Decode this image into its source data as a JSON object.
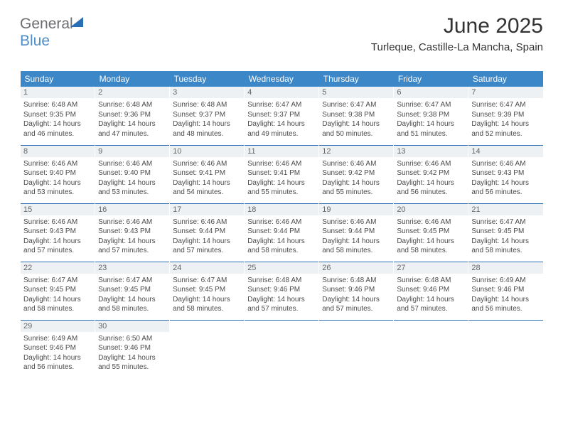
{
  "brand": {
    "part1": "General",
    "part2": "Blue"
  },
  "title": "June 2025",
  "location": "Turleque, Castille-La Mancha, Spain",
  "colors": {
    "header_bg": "#3b87c8",
    "header_text": "#ffffff",
    "daynum_bg": "#eef1f3",
    "weeksep": "#2a6fb5",
    "brand_blue": "#4f8ec8",
    "brand_gray": "#6d6e71"
  },
  "weekdays": [
    "Sunday",
    "Monday",
    "Tuesday",
    "Wednesday",
    "Thursday",
    "Friday",
    "Saturday"
  ],
  "weeks": [
    [
      {
        "day": "1",
        "sunrise": "Sunrise: 6:48 AM",
        "sunset": "Sunset: 9:35 PM",
        "dl1": "Daylight: 14 hours",
        "dl2": "and 46 minutes."
      },
      {
        "day": "2",
        "sunrise": "Sunrise: 6:48 AM",
        "sunset": "Sunset: 9:36 PM",
        "dl1": "Daylight: 14 hours",
        "dl2": "and 47 minutes."
      },
      {
        "day": "3",
        "sunrise": "Sunrise: 6:48 AM",
        "sunset": "Sunset: 9:37 PM",
        "dl1": "Daylight: 14 hours",
        "dl2": "and 48 minutes."
      },
      {
        "day": "4",
        "sunrise": "Sunrise: 6:47 AM",
        "sunset": "Sunset: 9:37 PM",
        "dl1": "Daylight: 14 hours",
        "dl2": "and 49 minutes."
      },
      {
        "day": "5",
        "sunrise": "Sunrise: 6:47 AM",
        "sunset": "Sunset: 9:38 PM",
        "dl1": "Daylight: 14 hours",
        "dl2": "and 50 minutes."
      },
      {
        "day": "6",
        "sunrise": "Sunrise: 6:47 AM",
        "sunset": "Sunset: 9:38 PM",
        "dl1": "Daylight: 14 hours",
        "dl2": "and 51 minutes."
      },
      {
        "day": "7",
        "sunrise": "Sunrise: 6:47 AM",
        "sunset": "Sunset: 9:39 PM",
        "dl1": "Daylight: 14 hours",
        "dl2": "and 52 minutes."
      }
    ],
    [
      {
        "day": "8",
        "sunrise": "Sunrise: 6:46 AM",
        "sunset": "Sunset: 9:40 PM",
        "dl1": "Daylight: 14 hours",
        "dl2": "and 53 minutes."
      },
      {
        "day": "9",
        "sunrise": "Sunrise: 6:46 AM",
        "sunset": "Sunset: 9:40 PM",
        "dl1": "Daylight: 14 hours",
        "dl2": "and 53 minutes."
      },
      {
        "day": "10",
        "sunrise": "Sunrise: 6:46 AM",
        "sunset": "Sunset: 9:41 PM",
        "dl1": "Daylight: 14 hours",
        "dl2": "and 54 minutes."
      },
      {
        "day": "11",
        "sunrise": "Sunrise: 6:46 AM",
        "sunset": "Sunset: 9:41 PM",
        "dl1": "Daylight: 14 hours",
        "dl2": "and 55 minutes."
      },
      {
        "day": "12",
        "sunrise": "Sunrise: 6:46 AM",
        "sunset": "Sunset: 9:42 PM",
        "dl1": "Daylight: 14 hours",
        "dl2": "and 55 minutes."
      },
      {
        "day": "13",
        "sunrise": "Sunrise: 6:46 AM",
        "sunset": "Sunset: 9:42 PM",
        "dl1": "Daylight: 14 hours",
        "dl2": "and 56 minutes."
      },
      {
        "day": "14",
        "sunrise": "Sunrise: 6:46 AM",
        "sunset": "Sunset: 9:43 PM",
        "dl1": "Daylight: 14 hours",
        "dl2": "and 56 minutes."
      }
    ],
    [
      {
        "day": "15",
        "sunrise": "Sunrise: 6:46 AM",
        "sunset": "Sunset: 9:43 PM",
        "dl1": "Daylight: 14 hours",
        "dl2": "and 57 minutes."
      },
      {
        "day": "16",
        "sunrise": "Sunrise: 6:46 AM",
        "sunset": "Sunset: 9:43 PM",
        "dl1": "Daylight: 14 hours",
        "dl2": "and 57 minutes."
      },
      {
        "day": "17",
        "sunrise": "Sunrise: 6:46 AM",
        "sunset": "Sunset: 9:44 PM",
        "dl1": "Daylight: 14 hours",
        "dl2": "and 57 minutes."
      },
      {
        "day": "18",
        "sunrise": "Sunrise: 6:46 AM",
        "sunset": "Sunset: 9:44 PM",
        "dl1": "Daylight: 14 hours",
        "dl2": "and 58 minutes."
      },
      {
        "day": "19",
        "sunrise": "Sunrise: 6:46 AM",
        "sunset": "Sunset: 9:44 PM",
        "dl1": "Daylight: 14 hours",
        "dl2": "and 58 minutes."
      },
      {
        "day": "20",
        "sunrise": "Sunrise: 6:46 AM",
        "sunset": "Sunset: 9:45 PM",
        "dl1": "Daylight: 14 hours",
        "dl2": "and 58 minutes."
      },
      {
        "day": "21",
        "sunrise": "Sunrise: 6:47 AM",
        "sunset": "Sunset: 9:45 PM",
        "dl1": "Daylight: 14 hours",
        "dl2": "and 58 minutes."
      }
    ],
    [
      {
        "day": "22",
        "sunrise": "Sunrise: 6:47 AM",
        "sunset": "Sunset: 9:45 PM",
        "dl1": "Daylight: 14 hours",
        "dl2": "and 58 minutes."
      },
      {
        "day": "23",
        "sunrise": "Sunrise: 6:47 AM",
        "sunset": "Sunset: 9:45 PM",
        "dl1": "Daylight: 14 hours",
        "dl2": "and 58 minutes."
      },
      {
        "day": "24",
        "sunrise": "Sunrise: 6:47 AM",
        "sunset": "Sunset: 9:45 PM",
        "dl1": "Daylight: 14 hours",
        "dl2": "and 58 minutes."
      },
      {
        "day": "25",
        "sunrise": "Sunrise: 6:48 AM",
        "sunset": "Sunset: 9:46 PM",
        "dl1": "Daylight: 14 hours",
        "dl2": "and 57 minutes."
      },
      {
        "day": "26",
        "sunrise": "Sunrise: 6:48 AM",
        "sunset": "Sunset: 9:46 PM",
        "dl1": "Daylight: 14 hours",
        "dl2": "and 57 minutes."
      },
      {
        "day": "27",
        "sunrise": "Sunrise: 6:48 AM",
        "sunset": "Sunset: 9:46 PM",
        "dl1": "Daylight: 14 hours",
        "dl2": "and 57 minutes."
      },
      {
        "day": "28",
        "sunrise": "Sunrise: 6:49 AM",
        "sunset": "Sunset: 9:46 PM",
        "dl1": "Daylight: 14 hours",
        "dl2": "and 56 minutes."
      }
    ],
    [
      {
        "day": "29",
        "sunrise": "Sunrise: 6:49 AM",
        "sunset": "Sunset: 9:46 PM",
        "dl1": "Daylight: 14 hours",
        "dl2": "and 56 minutes."
      },
      {
        "day": "30",
        "sunrise": "Sunrise: 6:50 AM",
        "sunset": "Sunset: 9:46 PM",
        "dl1": "Daylight: 14 hours",
        "dl2": "and 55 minutes."
      },
      null,
      null,
      null,
      null,
      null
    ]
  ]
}
